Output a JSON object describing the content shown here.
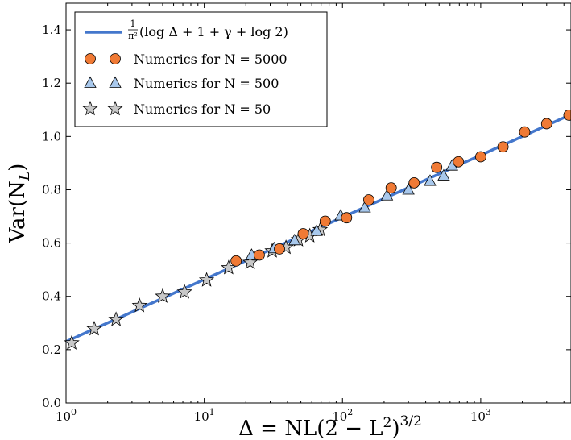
{
  "chart_data": {
    "type": "scatter",
    "title": "",
    "xlabel": "Δ = NL(2 − L²)^{3/2}",
    "ylabel": "Var(N_L)",
    "x_scale": "log",
    "xlim": [
      1,
      4500
    ],
    "ylim": [
      0.0,
      1.5
    ],
    "grid": false,
    "legend_position": "top-left",
    "x_ticks": [
      {
        "value": 1,
        "label": "10",
        "exp": "0"
      },
      {
        "value": 10,
        "label": "10",
        "exp": "1"
      },
      {
        "value": 100,
        "label": "10",
        "exp": "2"
      },
      {
        "value": 1000,
        "label": "10",
        "exp": "3"
      }
    ],
    "y_ticks": [
      {
        "value": 0.0,
        "label": "0.0"
      },
      {
        "value": 0.2,
        "label": "0.2"
      },
      {
        "value": 0.4,
        "label": "0.4"
      },
      {
        "value": 0.6,
        "label": "0.6"
      },
      {
        "value": 0.8,
        "label": "0.8"
      },
      {
        "value": 1.0,
        "label": "1.0"
      },
      {
        "value": 1.2,
        "label": "1.2"
      },
      {
        "value": 1.4,
        "label": "1.4"
      }
    ],
    "colors": {
      "theory_line": "#4477cc",
      "n5000": "#f07a35",
      "n500": "#a8c8ec",
      "n50": "#c8c8c8",
      "marker_edge": "#000000"
    },
    "theory": {
      "name": "(1/π²)(log Δ + 1 + γ + log 2)",
      "prefix": "(log Δ + 1 + γ + log 2)",
      "x_start": 1,
      "x_end": 4500,
      "gamma": 0.5772
    },
    "series": [
      {
        "name": "Numerics for N = 5000",
        "marker": "circle",
        "x": [
          17,
          25,
          35,
          52,
          75,
          107,
          155,
          225,
          330,
          480,
          690,
          1000,
          1450,
          2080,
          3000,
          4350
        ],
        "y": [
          0.533,
          0.555,
          0.578,
          0.635,
          0.682,
          0.695,
          0.762,
          0.807,
          0.826,
          0.884,
          0.905,
          0.924,
          0.961,
          1.017,
          1.048,
          1.08
        ]
      },
      {
        "name": "Numerics for N = 500",
        "marker": "triangle",
        "x": [
          22,
          32,
          45,
          65,
          97,
          145,
          210,
          300,
          430,
          540,
          620
        ],
        "y": [
          0.555,
          0.58,
          0.61,
          0.645,
          0.703,
          0.733,
          0.778,
          0.8,
          0.833,
          0.853,
          0.89
        ]
      },
      {
        "name": "Numerics for N = 50",
        "marker": "star",
        "x": [
          1.1,
          1.6,
          2.3,
          3.4,
          5.0,
          7.2,
          10.4,
          15,
          21.5,
          31,
          39,
          48,
          58,
          69
        ],
        "y": [
          0.225,
          0.278,
          0.313,
          0.365,
          0.4,
          0.416,
          0.461,
          0.507,
          0.527,
          0.57,
          0.583,
          0.612,
          0.627,
          0.65
        ]
      }
    ]
  }
}
